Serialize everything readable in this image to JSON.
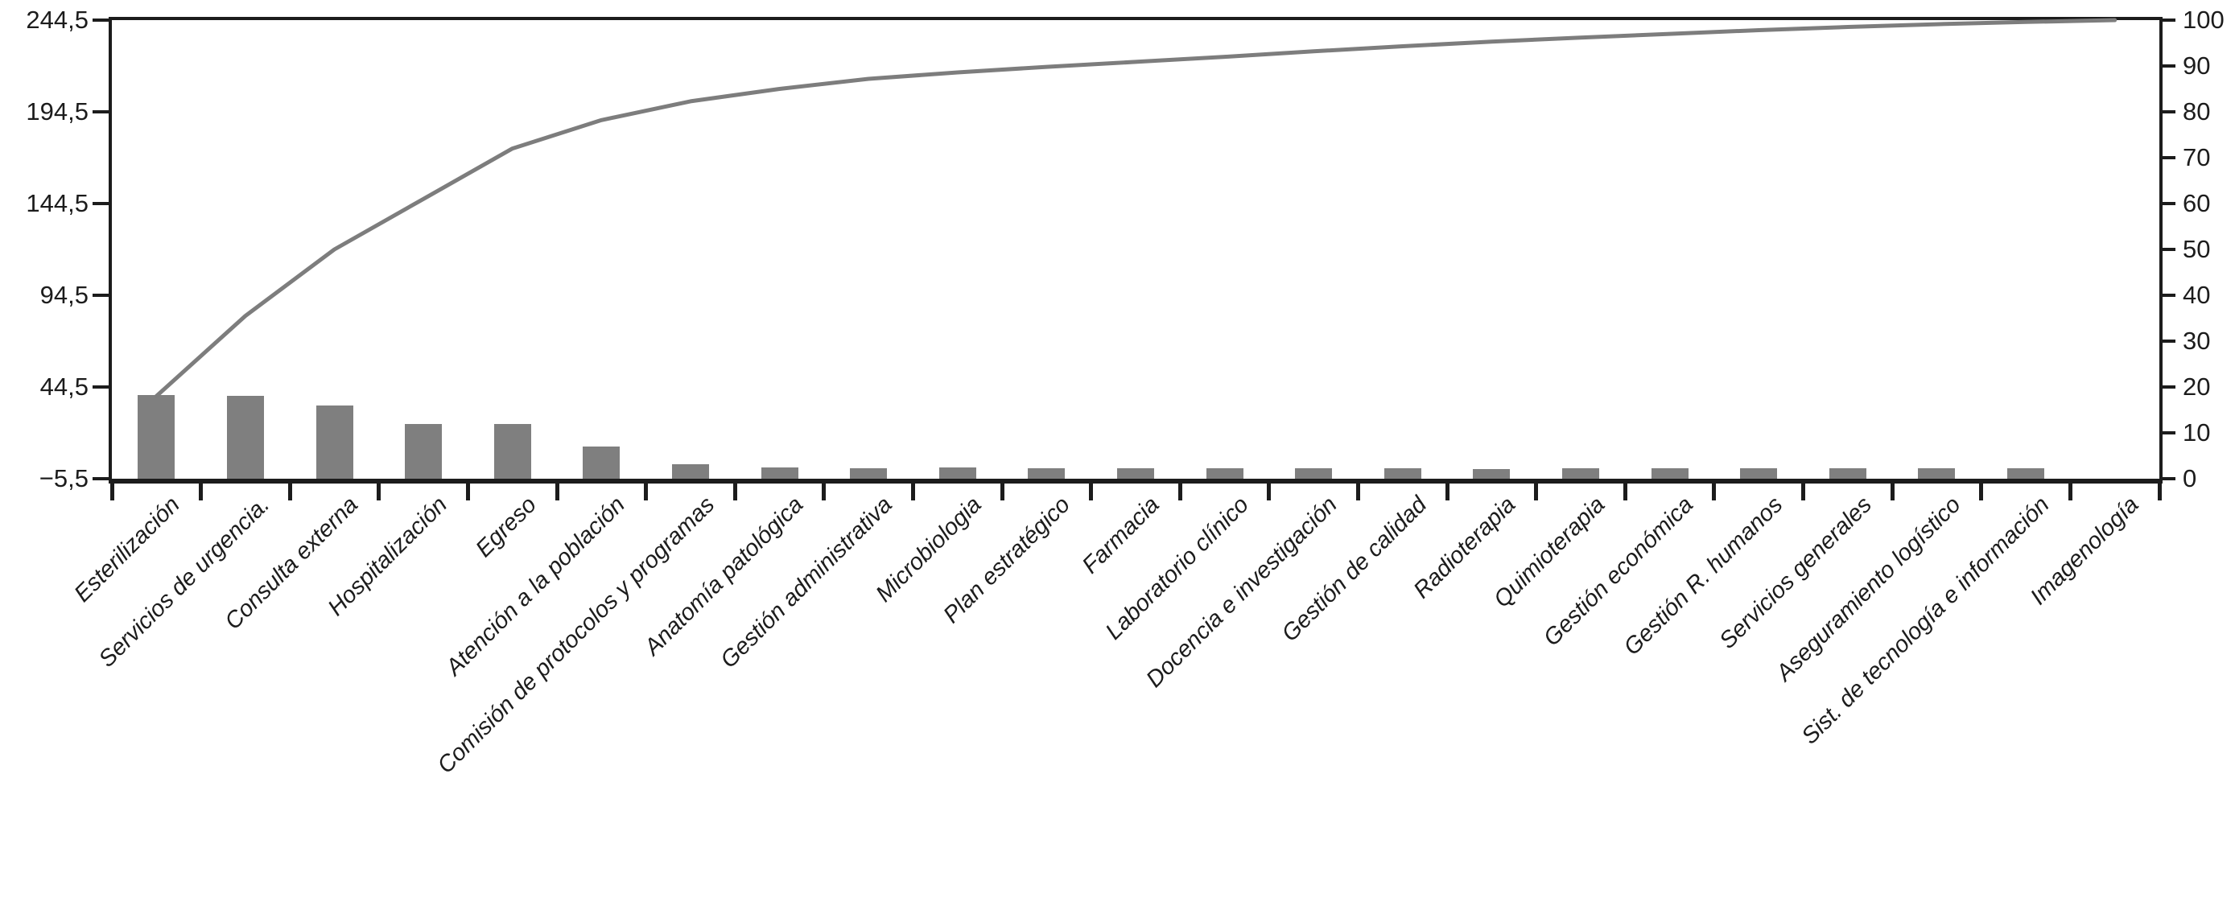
{
  "chart_data": {
    "type": "pareto",
    "title": "",
    "legend": false,
    "grid": false,
    "categories": [
      "Esterilización",
      "Servicios de urgencia.",
      "Consulta externa",
      "Hospitalización",
      "Egreso",
      "Atención a la población",
      "Comisión de protocolos y programas",
      "Anatomía patológica",
      "Gestión administrativa",
      "Microbiologia",
      "Plan estratégico",
      "Farmacia",
      "Laboratorio clínico",
      "Docencia e investigación",
      "Gestión de calidad",
      "Radioterapia",
      "Quimioterapia",
      "Gestión económica",
      "Gestión R. humanos",
      "Servicios generales",
      "Aseguramiento logístico",
      "Sist. de tecnología e información",
      "Imagenología"
    ],
    "series": [
      {
        "name": "frequency-bars",
        "type": "bar",
        "axis": "left",
        "color": "#7f7f7f",
        "values": [
          45.4,
          45.0,
          39.8,
          29.8,
          29.8,
          17.7,
          7.8,
          6.0,
          5.8,
          6.0,
          5.8,
          5.6,
          5.8,
          5.8,
          5.5,
          5.3,
          5.5,
          5.8,
          5.5,
          5.6,
          5.8,
          5.5,
          0
        ]
      },
      {
        "name": "cumulative-percentage-line",
        "type": "line",
        "axis": "right",
        "color": "#7d7d7d",
        "values": [
          18,
          35.5,
          50,
          61,
          72,
          78.2,
          82.3,
          85,
          87.2,
          88.6,
          89.8,
          90.9,
          92,
          93.2,
          94.3,
          95.3,
          96.2,
          97,
          97.8,
          98.5,
          99.1,
          99.6,
          100
        ]
      }
    ],
    "left_axis": {
      "min": -5.5,
      "max": 244.5,
      "ticks": [
        {
          "label": "244,5",
          "value": 244.5
        },
        {
          "label": "194,5",
          "value": 194.5
        },
        {
          "label": "144,5",
          "value": 144.5
        },
        {
          "label": "94,5",
          "value": 94.5
        },
        {
          "label": "44,5",
          "value": 44.5
        },
        {
          "label": "−5,5",
          "value": -5.5
        }
      ]
    },
    "right_axis": {
      "min": 0,
      "max": 100,
      "ticks": [
        {
          "label": "100",
          "value": 100
        },
        {
          "label": "90",
          "value": 90
        },
        {
          "label": "80",
          "value": 80
        },
        {
          "label": "70",
          "value": 70
        },
        {
          "label": "60",
          "value": 60
        },
        {
          "label": "50",
          "value": 50
        },
        {
          "label": "40",
          "value": 40
        },
        {
          "label": "30",
          "value": 30
        },
        {
          "label": "20",
          "value": 20
        },
        {
          "label": "10",
          "value": 10
        },
        {
          "label": "0",
          "value": 0
        }
      ]
    }
  }
}
